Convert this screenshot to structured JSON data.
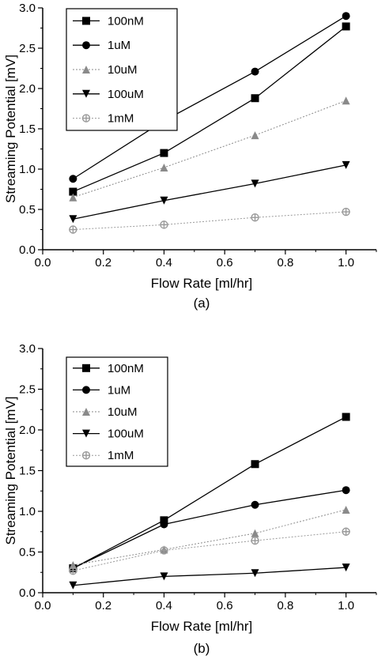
{
  "chart_data": [
    {
      "type": "line",
      "caption": "(a)",
      "xlabel": "Flow Rate [ml/hr]",
      "ylabel": "Streaming Potential [mV]",
      "xlim": [
        0.0,
        1.1
      ],
      "ylim": [
        0.0,
        3.0
      ],
      "xticks": [
        "0.0",
        "0.2",
        "0.4",
        "0.6",
        "0.8",
        "1.0"
      ],
      "yticks": [
        "0.0",
        "0.5",
        "1.0",
        "1.5",
        "2.0",
        "2.5",
        "3.0"
      ],
      "legend_position": "top-left",
      "grid": false,
      "x": [
        0.1,
        0.4,
        0.7,
        1.0
      ],
      "series": [
        {
          "name": "100nM",
          "marker": "square",
          "color": "#000000",
          "values": [
            0.72,
            1.2,
            1.88,
            2.77
          ]
        },
        {
          "name": "1uM",
          "marker": "circle",
          "color": "#000000",
          "values": [
            0.88,
            1.6,
            2.21,
            2.9
          ]
        },
        {
          "name": "10uM",
          "marker": "triangle-up",
          "color": "#8a8a8a",
          "values": [
            0.65,
            1.02,
            1.42,
            1.85
          ]
        },
        {
          "name": "100uM",
          "marker": "triangle-down",
          "color": "#000000",
          "values": [
            0.38,
            0.61,
            0.82,
            1.05
          ]
        },
        {
          "name": "1mM",
          "marker": "cross-circle",
          "color": "#9a9a9a",
          "values": [
            0.25,
            0.31,
            0.4,
            0.47
          ]
        }
      ]
    },
    {
      "type": "line",
      "caption": "(b)",
      "xlabel": "Flow Rate [ml/hr]",
      "ylabel": "Streaming Potential [mV]",
      "xlim": [
        0.0,
        1.1
      ],
      "ylim": [
        0.0,
        3.0
      ],
      "xticks": [
        "0.0",
        "0.2",
        "0.4",
        "0.6",
        "0.8",
        "1.0"
      ],
      "yticks": [
        "0.0",
        "0.5",
        "1.0",
        "1.5",
        "2.0",
        "2.5",
        "3.0"
      ],
      "legend_position": "top-left",
      "grid": false,
      "x": [
        0.1,
        0.4,
        0.7,
        1.0
      ],
      "series": [
        {
          "name": "100nM",
          "marker": "square",
          "color": "#000000",
          "values": [
            0.3,
            0.89,
            1.58,
            2.16
          ]
        },
        {
          "name": "1uM",
          "marker": "circle",
          "color": "#000000",
          "values": [
            0.3,
            0.84,
            1.08,
            1.26
          ]
        },
        {
          "name": "10uM",
          "marker": "triangle-up",
          "color": "#8a8a8a",
          "values": [
            0.34,
            0.53,
            0.73,
            1.02
          ]
        },
        {
          "name": "100uM",
          "marker": "triangle-down",
          "color": "#000000",
          "values": [
            0.09,
            0.2,
            0.24,
            0.31
          ]
        },
        {
          "name": "1mM",
          "marker": "cross-circle",
          "color": "#9a9a9a",
          "values": [
            0.27,
            0.52,
            0.64,
            0.75
          ]
        }
      ]
    }
  ]
}
